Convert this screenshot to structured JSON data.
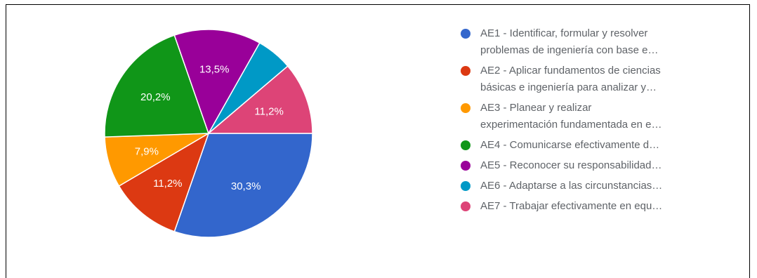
{
  "chart_data": {
    "type": "pie",
    "slices": [
      {
        "name": "AE1 - Identificar, formular y resolver problemas de ingeniería con base e…",
        "value": 30.3,
        "label": "30,3%",
        "color": "#3366cc"
      },
      {
        "name": "AE2 - Aplicar fundamentos de ciencias básicas e ingeniería para analizar y…",
        "value": 11.2,
        "label": "11,2%",
        "color": "#dc3912"
      },
      {
        "name": "AE3 - Planear y realizar experimentación fundamentada en e…",
        "value": 7.9,
        "label": "7,9%",
        "color": "#ff9900"
      },
      {
        "name": "AE4 - Comunicarse efectivamente d…",
        "value": 20.2,
        "label": "20,2%",
        "color": "#109618"
      },
      {
        "name": "AE5 - Reconocer su responsabilidad…",
        "value": 13.5,
        "label": "13,5%",
        "color": "#990099"
      },
      {
        "name": "AE6 - Adaptarse a las circunstancias…",
        "value": 5.6,
        "label": "",
        "color": "#0099c6"
      },
      {
        "name": "AE7 - Trabajar efectivamente en equ…",
        "value": 11.2,
        "label": "11,2%",
        "color": "#dd4477"
      }
    ],
    "legend_position": "right"
  },
  "legend": {
    "items": [
      {
        "lines": [
          "AE1 - Identificar, formular y resolver",
          "problemas de ingeniería con base e…"
        ]
      },
      {
        "lines": [
          "AE2 - Aplicar fundamentos de ciencias",
          "básicas e ingeniería para analizar y…"
        ]
      },
      {
        "lines": [
          "AE3 - Planear y realizar",
          "experimentación fundamentada en e…"
        ]
      },
      {
        "lines": [
          "AE4 - Comunicarse efectivamente d…"
        ]
      },
      {
        "lines": [
          "AE5 - Reconocer su responsabilidad…"
        ]
      },
      {
        "lines": [
          "AE6 - Adaptarse a las circunstancias…"
        ]
      },
      {
        "lines": [
          "AE7 - Trabajar efectivamente en equ…"
        ]
      }
    ]
  }
}
